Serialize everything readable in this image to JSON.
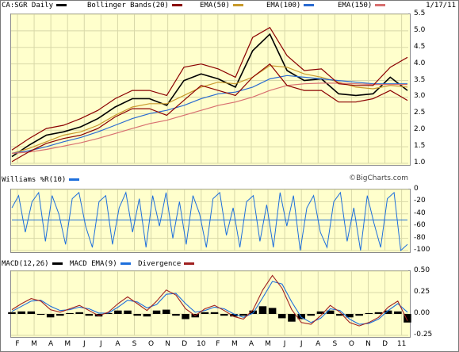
{
  "header": {
    "symbol_label": "CA:SGR Daily",
    "indicators": [
      {
        "label": "Bollinger Bands(20)",
        "color": "#8b0000"
      },
      {
        "label": "EMA(50)",
        "color": "#c89a2c"
      },
      {
        "label": "EMA(100)",
        "color": "#2a6bd1"
      },
      {
        "label": "EMA(150)",
        "color": "#d87070"
      }
    ],
    "symbol_color": "#000000",
    "date": "1/17/11"
  },
  "watermark": "©BigCharts.com",
  "williams": {
    "label": "Williams %R(10)",
    "color": "#1e6fdc"
  },
  "macd": {
    "labels": [
      {
        "label": "MACD(12,26)",
        "color": "#000000"
      },
      {
        "label": "MACD EMA(9)",
        "color": "#1e6fdc"
      },
      {
        "label": "Divergence",
        "color": "#a02020"
      }
    ],
    "bar_color": "#000000"
  },
  "x_axis_months": [
    "F",
    "M",
    "A",
    "M",
    "J",
    "J",
    "A",
    "S",
    "O",
    "N",
    "D",
    "10",
    "F",
    "M",
    "A",
    "M",
    "J",
    "J",
    "A",
    "S",
    "O",
    "N",
    "D",
    "11"
  ],
  "chart_data": [
    {
      "type": "line",
      "title": "CA:SGR Daily",
      "ylim": [
        1.0,
        5.5
      ],
      "yticks": [
        "5.5",
        "5.0",
        "4.5",
        "4.0",
        "3.5",
        "3.0",
        "2.5",
        "2.0",
        "1.5",
        "1.0"
      ],
      "x": [
        "F",
        "M",
        "A",
        "M",
        "J",
        "J",
        "A",
        "S",
        "O",
        "N",
        "D",
        "10",
        "F",
        "M",
        "A",
        "M",
        "J",
        "J",
        "A",
        "S",
        "O",
        "N",
        "D",
        "11"
      ],
      "series": [
        {
          "name": "CA:SGR Daily",
          "values": [
            1.2,
            1.55,
            1.85,
            1.95,
            2.1,
            2.35,
            2.7,
            2.95,
            2.95,
            2.75,
            3.5,
            3.7,
            3.55,
            3.3,
            4.4,
            4.9,
            3.8,
            3.5,
            3.55,
            3.1,
            3.05,
            3.1,
            3.6,
            3.2
          ]
        },
        {
          "name": "EMA(50)",
          "values": [
            1.3,
            1.45,
            1.65,
            1.85,
            1.95,
            2.15,
            2.45,
            2.7,
            2.8,
            2.8,
            3.05,
            3.3,
            3.45,
            3.4,
            3.6,
            3.95,
            3.9,
            3.7,
            3.6,
            3.45,
            3.3,
            3.25,
            3.35,
            3.3
          ]
        },
        {
          "name": "EMA(100)",
          "values": [
            1.3,
            1.38,
            1.5,
            1.65,
            1.78,
            1.95,
            2.15,
            2.35,
            2.5,
            2.6,
            2.75,
            2.95,
            3.1,
            3.15,
            3.3,
            3.55,
            3.65,
            3.6,
            3.55,
            3.5,
            3.45,
            3.4,
            3.4,
            3.4
          ]
        },
        {
          "name": "EMA(150)",
          "values": [
            1.3,
            1.34,
            1.42,
            1.52,
            1.62,
            1.75,
            1.9,
            2.05,
            2.2,
            2.3,
            2.45,
            2.6,
            2.75,
            2.85,
            3.0,
            3.2,
            3.35,
            3.4,
            3.42,
            3.42,
            3.4,
            3.38,
            3.38,
            3.38
          ]
        },
        {
          "name": "Bollinger Upper",
          "values": [
            1.4,
            1.75,
            2.05,
            2.15,
            2.35,
            2.6,
            2.95,
            3.2,
            3.2,
            3.05,
            3.9,
            4.0,
            3.85,
            3.6,
            4.8,
            5.1,
            4.25,
            3.8,
            3.85,
            3.4,
            3.35,
            3.35,
            3.9,
            4.2
          ]
        },
        {
          "name": "Bollinger Lower",
          "values": [
            1.05,
            1.35,
            1.6,
            1.75,
            1.85,
            2.05,
            2.4,
            2.65,
            2.65,
            2.45,
            2.9,
            3.35,
            3.2,
            3.05,
            3.6,
            4.0,
            3.35,
            3.2,
            3.2,
            2.85,
            2.85,
            2.95,
            3.2,
            2.9
          ]
        }
      ]
    },
    {
      "type": "line",
      "title": "Williams %R(10)",
      "ylim": [
        -100,
        0
      ],
      "yticks": [
        "0",
        "-20",
        "-40",
        "-60",
        "-80",
        "-100"
      ],
      "reference_line": -50,
      "series": [
        {
          "name": "Williams %R(10)",
          "values": [
            -30,
            -10,
            -70,
            -20,
            -5,
            -85,
            -10,
            -40,
            -90,
            -15,
            -5,
            -60,
            -95,
            -20,
            -10,
            -90,
            -30,
            -5,
            -70,
            -15,
            -95,
            -10,
            -60,
            -5,
            -80,
            -20,
            -90,
            -10,
            -40,
            -95,
            -15,
            -5,
            -75,
            -30,
            -95,
            -20,
            -10,
            -85,
            -25,
            -95,
            -5,
            -60,
            -10,
            -100,
            -30,
            -10,
            -70,
            -95,
            -20,
            -5,
            -85,
            -30,
            -100,
            -10,
            -55,
            -95,
            -15,
            -5,
            -100,
            -90
          ]
        }
      ]
    },
    {
      "type": "line",
      "title": "MACD(12,26)",
      "ylim": [
        -0.25,
        0.5
      ],
      "yticks": [
        "0.50",
        "0.25",
        "0.00",
        "-0.25"
      ],
      "series": [
        {
          "name": "MACD(12,26)",
          "values": [
            0.05,
            0.12,
            0.18,
            0.15,
            0.05,
            0.02,
            0.06,
            0.1,
            0.04,
            -0.02,
            0.02,
            0.12,
            0.2,
            0.12,
            0.04,
            0.15,
            0.28,
            0.22,
            0.06,
            -0.02,
            0.06,
            0.1,
            0.04,
            -0.03,
            -0.06,
            0.05,
            0.28,
            0.45,
            0.3,
            0.05,
            -0.1,
            -0.12,
            -0.02,
            0.1,
            0.02,
            -0.1,
            -0.14,
            -0.1,
            -0.04,
            0.08,
            0.15,
            -0.08
          ]
        },
        {
          "name": "MACD EMA(9)",
          "values": [
            0.03,
            0.09,
            0.15,
            0.16,
            0.09,
            0.04,
            0.05,
            0.08,
            0.06,
            0.01,
            0.01,
            0.08,
            0.16,
            0.14,
            0.07,
            0.11,
            0.23,
            0.24,
            0.12,
            0.02,
            0.04,
            0.08,
            0.06,
            0.0,
            -0.04,
            0.01,
            0.19,
            0.38,
            0.35,
            0.14,
            -0.04,
            -0.1,
            -0.05,
            0.06,
            0.04,
            -0.06,
            -0.12,
            -0.11,
            -0.06,
            0.04,
            0.12,
            0.02
          ]
        },
        {
          "name": "Divergence",
          "values": [
            0.02,
            0.03,
            0.03,
            -0.01,
            -0.04,
            -0.02,
            0.01,
            0.02,
            -0.02,
            -0.03,
            0.01,
            0.04,
            0.04,
            -0.02,
            -0.03,
            0.04,
            0.05,
            -0.02,
            -0.06,
            -0.04,
            0.02,
            0.02,
            -0.02,
            -0.03,
            -0.02,
            0.04,
            0.09,
            0.07,
            -0.05,
            -0.09,
            -0.06,
            -0.02,
            0.03,
            0.04,
            -0.02,
            -0.04,
            -0.02,
            0.01,
            0.02,
            0.04,
            0.03,
            -0.1
          ]
        }
      ]
    }
  ]
}
